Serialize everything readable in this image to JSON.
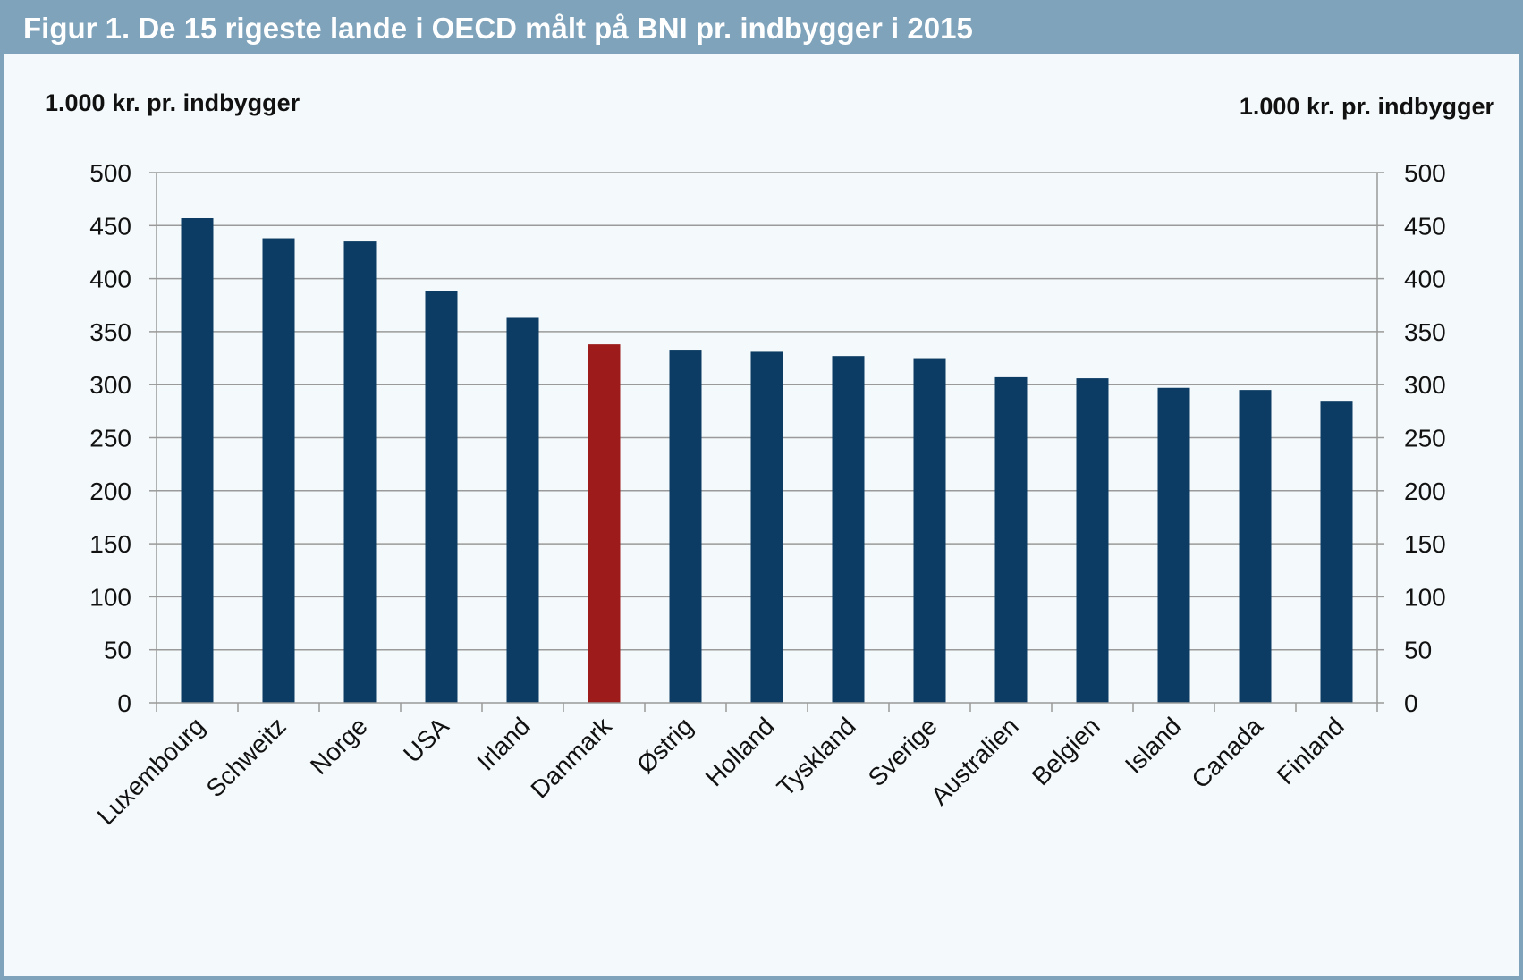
{
  "figure": {
    "title": "Figur 1. De 15 rigeste lande i OECD målt på BNI pr. indbygger i 2015"
  },
  "colors": {
    "frame": "#7fa3bb",
    "background": "#f4f9fb",
    "bar_default": "#0c3c63",
    "bar_highlight": "#9e1b1b",
    "grid": "#9a9a9a"
  },
  "chart_data": {
    "type": "bar",
    "title": "Figur 1. De 15 rigeste lande i OECD målt på BNI pr. indbygger i 2015",
    "ylabel_left": "1.000 kr. pr. indbygger",
    "ylabel_right": "1.000 kr. pr. indbygger",
    "xlabel": "",
    "ylim": [
      0,
      500
    ],
    "yticks": [
      0,
      50,
      100,
      150,
      200,
      250,
      300,
      350,
      400,
      450,
      500
    ],
    "grid": true,
    "categories": [
      "Luxembourg",
      "Schweitz",
      "Norge",
      "USA",
      "Irland",
      "Danmark",
      "Østrig",
      "Holland",
      "Tyskland",
      "Sverige",
      "Australien",
      "Belgien",
      "Island",
      "Canada",
      "Finland"
    ],
    "values": [
      457,
      438,
      435,
      388,
      363,
      338,
      333,
      331,
      327,
      325,
      307,
      306,
      297,
      295,
      284
    ],
    "highlight": "Danmark"
  }
}
